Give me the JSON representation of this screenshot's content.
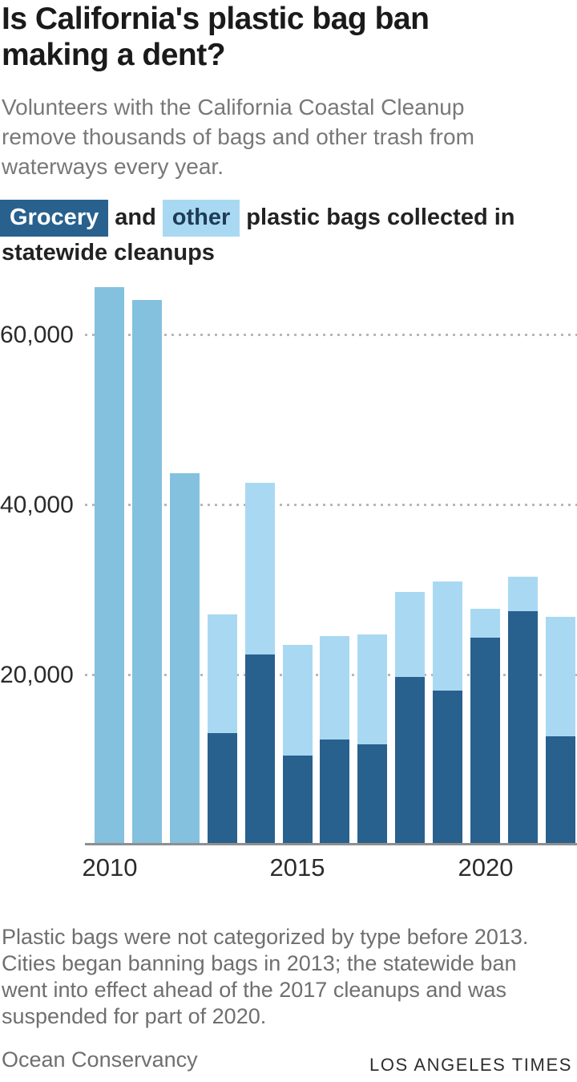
{
  "header": {
    "title_line1": "Is California's plastic bag ban",
    "title_line2": "making a dent?",
    "subtitle": "Volunteers with the California Coastal Cleanup remove thousands of bags and other trash from waterways every year."
  },
  "legend": {
    "grocery_label": "Grocery",
    "connector": "and",
    "other_label": "other",
    "suffix": "plastic bags collected in",
    "line2": "statewide cleanups"
  },
  "colors": {
    "grocery": "#28618e",
    "other": "#a9d9f2",
    "uncategorized": "#84c1de",
    "gridline": "#b7b7b7",
    "axis_line": "#8f8f8f",
    "title_text": "#1a1a1a",
    "muted_text": "#6f6f6f"
  },
  "chart_data": {
    "type": "bar",
    "stacked": true,
    "title": "Grocery and other plastic bags collected in statewide cleanups",
    "years": [
      2010,
      2011,
      2012,
      2013,
      2014,
      2015,
      2016,
      2017,
      2018,
      2019,
      2020,
      2021,
      2022
    ],
    "series": [
      {
        "name": "Grocery",
        "values": [
          0,
          0,
          0,
          13000,
          22300,
          10400,
          12300,
          11700,
          19600,
          18000,
          24200,
          27400,
          12600
        ]
      },
      {
        "name": "Other",
        "values": [
          0,
          0,
          0,
          14000,
          20200,
          13000,
          12200,
          12900,
          10000,
          12800,
          3400,
          4100,
          14100
        ]
      },
      {
        "name": "Uncategorized (pre-2013)",
        "values": [
          65500,
          64000,
          43600,
          0,
          0,
          0,
          0,
          0,
          0,
          0,
          0,
          0,
          0
        ]
      }
    ],
    "ylim": [
      0,
      66000
    ],
    "yticks": [
      20000,
      40000,
      60000
    ],
    "ytick_labels": [
      "20,000",
      "40,000",
      "60,000"
    ],
    "xticks": [
      2010,
      2015,
      2020
    ],
    "grid": "dotted horizontal, behind bars",
    "legend_position": "top"
  },
  "footer": {
    "note": "Plastic bags were not categorized by type before 2013. Cities began banning bags in 2013; the statewide ban went into effect ahead of the 2017 cleanups and was suspended for part of 2020.",
    "source": "Ocean Conservancy",
    "credit": "LOS ANGELES TIMES"
  }
}
